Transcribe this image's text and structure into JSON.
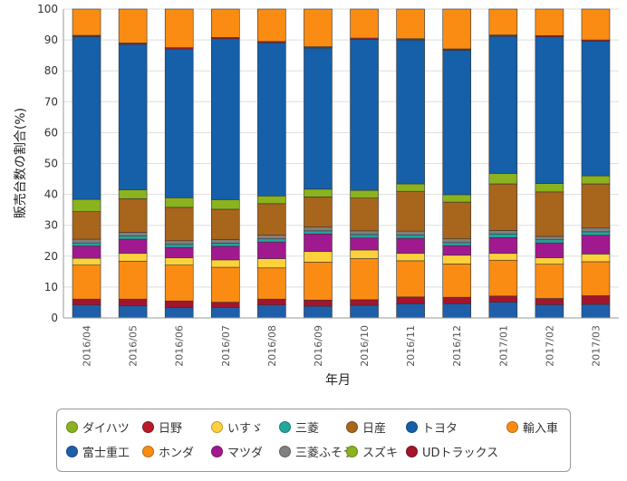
{
  "chart_data": {
    "type": "bar",
    "stacked": true,
    "title": "",
    "xlabel": "年月",
    "ylabel": "販売台数の割合(%)",
    "ylim": [
      0,
      100
    ],
    "yticks": [
      0,
      10,
      20,
      30,
      40,
      50,
      60,
      70,
      80,
      90,
      100
    ],
    "categories": [
      "2016/04",
      "2016/05",
      "2016/06",
      "2016/07",
      "2016/08",
      "2016/09",
      "2016/10",
      "2016/11",
      "2016/12",
      "2017/01",
      "2017/02",
      "2017/03"
    ],
    "series": [
      {
        "name": "富士重工",
        "color": "#1f5faa",
        "values": [
          4.2,
          3.9,
          3.3,
          3.4,
          4.2,
          3.8,
          4.1,
          4.6,
          4.6,
          5.1,
          4.3,
          4.4
        ]
      },
      {
        "name": "UDトラックス",
        "color": "#a3152d",
        "values": [
          1.9,
          2.2,
          2.2,
          1.7,
          1.9,
          2.0,
          1.8,
          2.2,
          2.1,
          2.0,
          2.0,
          2.8
        ]
      },
      {
        "name": "ホンダ",
        "color": "#fb8c13",
        "values": [
          11.0,
          12.3,
          11.6,
          11.3,
          10.1,
          12.3,
          13.3,
          11.7,
          10.8,
          11.6,
          11.1,
          11.0
        ]
      },
      {
        "name": "いすゞ",
        "color": "#fdd13c",
        "values": [
          2.2,
          2.5,
          2.4,
          2.4,
          3.0,
          3.4,
          2.8,
          2.4,
          2.8,
          2.2,
          2.1,
          2.5
        ]
      },
      {
        "name": "マツダ",
        "color": "#a1198f",
        "values": [
          4.0,
          4.6,
          3.3,
          4.4,
          5.4,
          5.7,
          3.9,
          4.9,
          3.1,
          5.1,
          4.8,
          6.1
        ]
      },
      {
        "name": "三菱",
        "color": "#22a69c",
        "values": [
          1.0,
          1.0,
          1.0,
          1.0,
          1.0,
          1.0,
          1.1,
          1.1,
          1.0,
          1.2,
          1.0,
          1.1
        ]
      },
      {
        "name": "三菱ふそう",
        "color": "#808080",
        "values": [
          1.2,
          1.2,
          1.2,
          1.2,
          1.2,
          1.2,
          1.2,
          1.2,
          1.2,
          1.1,
          1.1,
          1.2
        ]
      },
      {
        "name": "日産",
        "color": "#a8651c",
        "values": [
          8.9,
          10.9,
          10.8,
          9.8,
          10.2,
          9.8,
          10.6,
          12.9,
          11.9,
          15.1,
          14.4,
          14.3
        ]
      },
      {
        "name": "スズキ",
        "color": "#8ab31f",
        "values": [
          4.0,
          2.9,
          3.1,
          3.1,
          2.5,
          2.5,
          2.5,
          2.4,
          2.4,
          3.4,
          2.7,
          2.6
        ]
      },
      {
        "name": "トヨタ",
        "color": "#1560a8",
        "values": [
          52.7,
          47.1,
          48.2,
          52.1,
          49.6,
          45.7,
          48.9,
          46.6,
          46.8,
          44.4,
          47.5,
          43.6
        ]
      },
      {
        "name": "日野",
        "color": "#b81a28",
        "values": [
          0.4,
          0.4,
          0.4,
          0.4,
          0.4,
          0.4,
          0.4,
          0.4,
          0.4,
          0.4,
          0.4,
          0.4
        ]
      },
      {
        "name": "ダイハツ",
        "color": "#5f8a10",
        "values": [
          0.0,
          0.0,
          0.0,
          0.0,
          0.0,
          0.0,
          0.0,
          0.0,
          0.0,
          0.0,
          0.0,
          0.0
        ]
      },
      {
        "name": "輸入車",
        "color": "#fb8c13",
        "values": [
          8.5,
          11.0,
          12.5,
          9.2,
          10.5,
          12.2,
          9.4,
          9.6,
          12.9,
          8.4,
          8.6,
          10.0
        ]
      }
    ],
    "legend": {
      "position": "bottom",
      "rows": [
        [
          "ダイハツ",
          "日野",
          "いすゞ",
          "三菱",
          "日産",
          "トヨタ",
          "輸入車"
        ],
        [
          "富士重工",
          "ホンダ",
          "マツダ",
          "三菱ふそう",
          "スズキ",
          "UDトラックス"
        ]
      ]
    }
  }
}
